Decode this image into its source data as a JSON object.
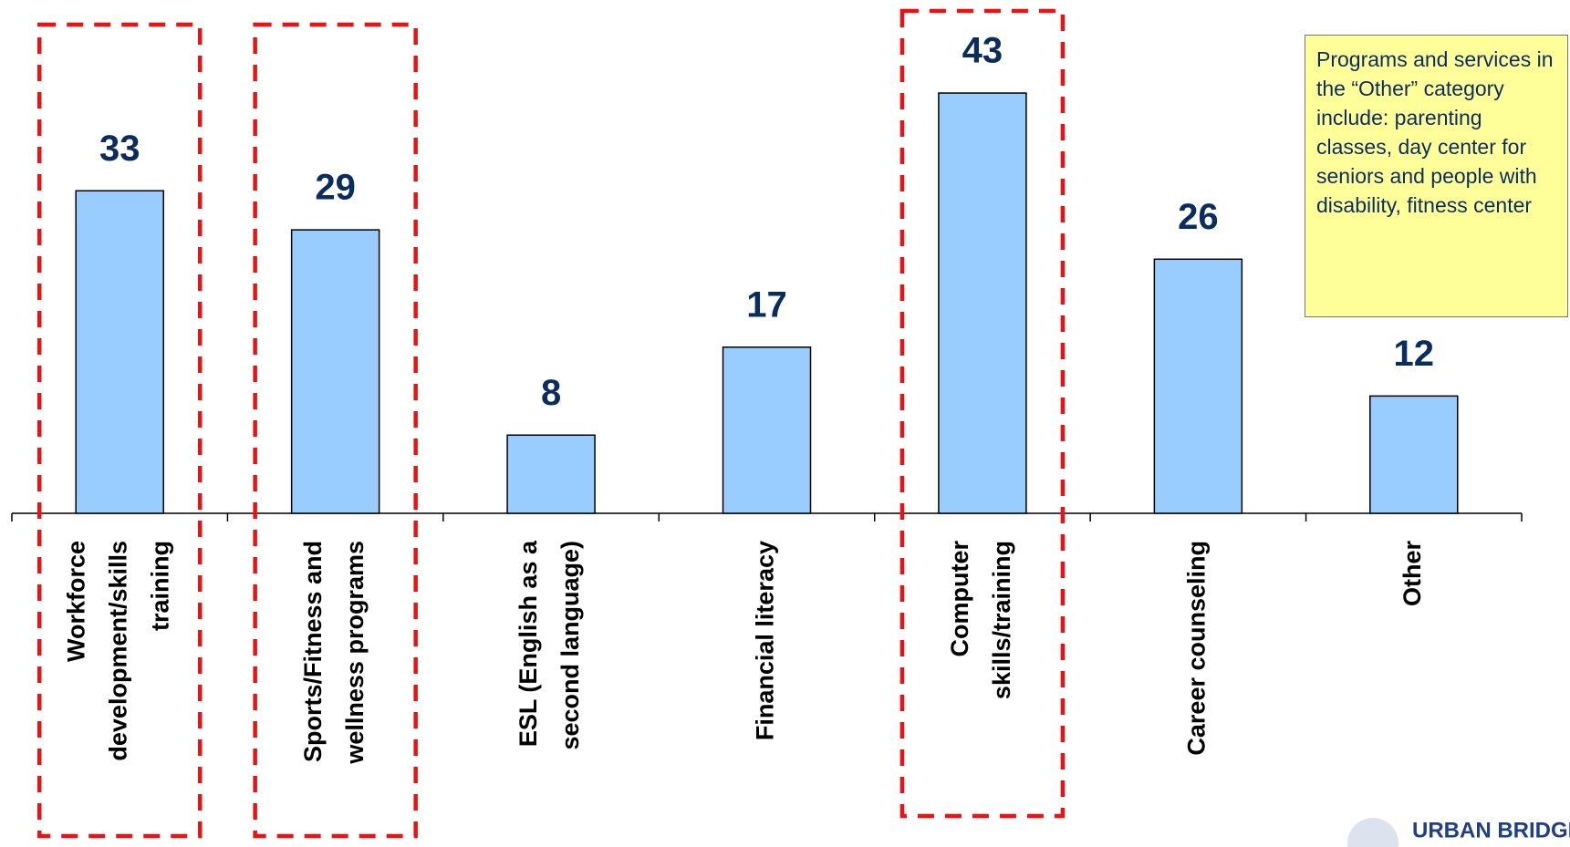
{
  "chart_data": {
    "type": "bar",
    "categories": [
      [
        "Workforce",
        "development/skills",
        "training"
      ],
      [
        "Sports/Fitness and",
        "wellness programs"
      ],
      [
        "ESL (English as a",
        "second language)"
      ],
      [
        "Financial literacy"
      ],
      [
        "Computer",
        "skills/training"
      ],
      [
        "Career counseling"
      ],
      [
        "Other"
      ]
    ],
    "values": [
      33,
      29,
      8,
      17,
      43,
      26,
      12
    ],
    "color": "#99ccff",
    "ylim": [
      0,
      50
    ],
    "highlight": [
      0,
      1,
      4
    ],
    "annotation": "Programs and services in the “Other” category include: parenting classes, day center for seniors and people with disability, fitness center",
    "logo": "URBAN BRIDGE"
  }
}
